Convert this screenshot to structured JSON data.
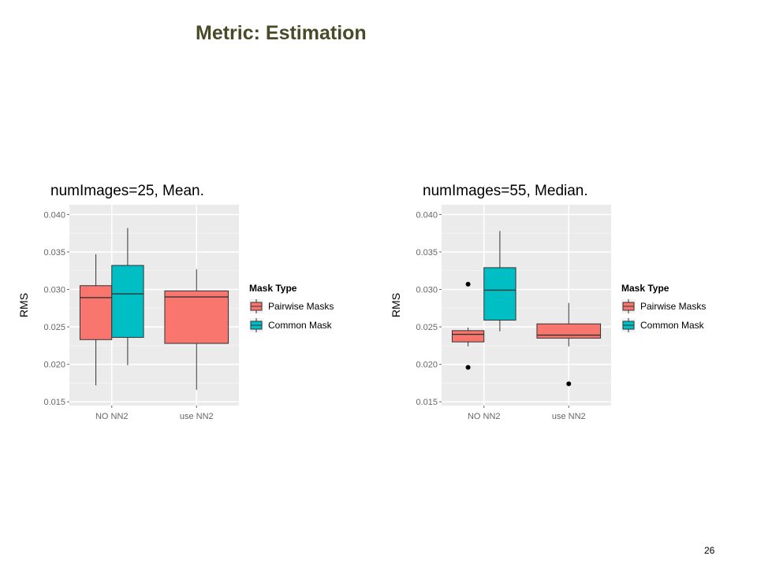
{
  "slide": {
    "title": "Metric: Estimation",
    "page_number": "26"
  },
  "colors": {
    "pairwise": "#f8766d",
    "common": "#00bfc4",
    "panel": "#ebebeb",
    "grid": "#ffffff"
  },
  "chart_data": [
    {
      "type": "boxplot",
      "title": "numImages=25, Mean.",
      "ylabel": "RMS",
      "xlabel": "",
      "categories": [
        "NO NN2",
        "use NN2"
      ],
      "ylim": [
        0.0145,
        0.0413
      ],
      "yticks": [
        "0.015",
        "0.020",
        "0.025",
        "0.030",
        "0.035",
        "0.040"
      ],
      "grid": true,
      "legend": {
        "title": "Mask Type",
        "position": "right",
        "entries": [
          "Pairwise Masks",
          "Common Mask"
        ]
      },
      "series": [
        {
          "name": "Pairwise Masks",
          "boxes": [
            {
              "category": "NO NN2",
              "min": 0.0172,
              "q1": 0.0233,
              "median": 0.0289,
              "q3": 0.0305,
              "max": 0.0347,
              "outliers": []
            },
            {
              "category": "use NN2",
              "min": 0.0166,
              "q1": 0.0228,
              "median": 0.029,
              "q3": 0.0298,
              "max": 0.0327,
              "outliers": []
            }
          ]
        },
        {
          "name": "Common Mask",
          "boxes": [
            {
              "category": "NO NN2",
              "min": 0.0199,
              "q1": 0.0236,
              "median": 0.0294,
              "q3": 0.0332,
              "max": 0.0382,
              "outliers": []
            }
          ]
        }
      ]
    },
    {
      "type": "boxplot",
      "title": "numImages=55, Median.",
      "ylabel": "RMS",
      "xlabel": "",
      "categories": [
        "NO NN2",
        "use NN2"
      ],
      "ylim": [
        0.0145,
        0.0413
      ],
      "yticks": [
        "0.015",
        "0.020",
        "0.025",
        "0.030",
        "0.035",
        "0.040"
      ],
      "grid": true,
      "legend": {
        "title": "Mask Type",
        "position": "right",
        "entries": [
          "Pairwise Masks",
          "Common Mask"
        ]
      },
      "series": [
        {
          "name": "Pairwise Masks",
          "boxes": [
            {
              "category": "NO NN2",
              "min": 0.0224,
              "q1": 0.023,
              "median": 0.024,
              "q3": 0.0245,
              "max": 0.0249,
              "outliers": [
                0.0307,
                0.0196
              ]
            },
            {
              "category": "use NN2",
              "min": 0.0224,
              "q1": 0.0235,
              "median": 0.0239,
              "q3": 0.0254,
              "max": 0.0282,
              "outliers": [
                0.0174
              ]
            }
          ]
        },
        {
          "name": "Common Mask",
          "boxes": [
            {
              "category": "NO NN2",
              "min": 0.0244,
              "q1": 0.0259,
              "median": 0.0299,
              "q3": 0.0329,
              "max": 0.0378,
              "outliers": []
            }
          ]
        }
      ]
    }
  ]
}
